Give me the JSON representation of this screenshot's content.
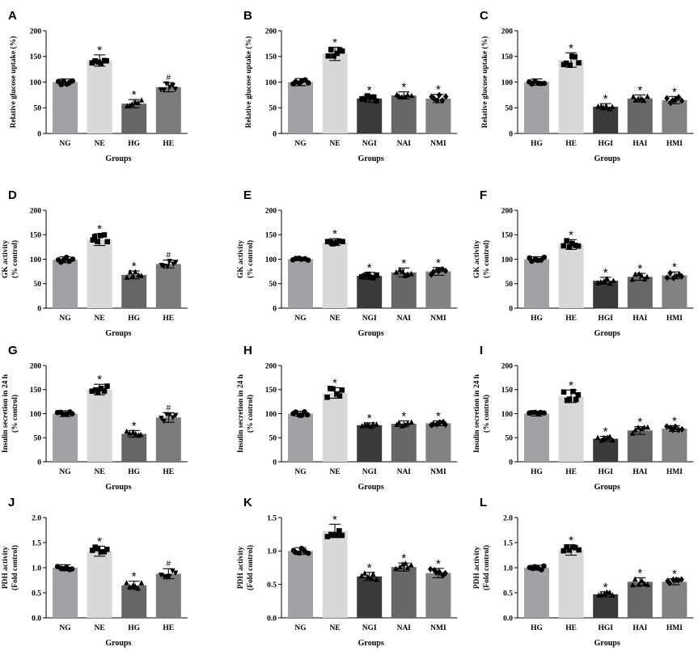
{
  "colors": {
    "NG": "#a1a1a6",
    "HG_ctrl": "#a1a1a6",
    "NE": "#d8d8d8",
    "HE_light": "#d8d8d8",
    "HG_dark": "#666666",
    "HE_dark": "#7b7b7b",
    "inhibitor1": "#3a3a3a",
    "inhibitor2": "#676767",
    "inhibitor3": "#828282"
  },
  "chart_data": [
    {
      "letter": "A",
      "type": "bar",
      "xlabel": "Groups",
      "ylabel": "Relative glucose uptake (%)",
      "ylim": [
        0,
        200
      ],
      "yticks": [
        "0",
        "50",
        "100",
        "150",
        "200"
      ],
      "categories": [
        "NG",
        "NE",
        "HG",
        "HE"
      ],
      "values": [
        100,
        142,
        58,
        90
      ],
      "errors": [
        6,
        11,
        8,
        9
      ],
      "colors": [
        "#a1a1a6",
        "#d8d8d8",
        "#666666",
        "#7b7b7b"
      ],
      "marks": [
        "",
        "*",
        "*",
        "#"
      ],
      "markers": [
        "circle",
        "square",
        "triangle",
        "triangle-down"
      ]
    },
    {
      "letter": "B",
      "type": "bar",
      "xlabel": "Groups",
      "ylabel": "Relative glucose uptake (%)",
      "ylim": [
        0,
        200
      ],
      "yticks": [
        "0",
        "50",
        "100",
        "150",
        "200"
      ],
      "categories": [
        "NG",
        "NE",
        "NGI",
        "NAI",
        "NMI"
      ],
      "values": [
        100,
        155,
        68,
        74,
        68
      ],
      "errors": [
        7,
        13,
        7,
        7,
        8
      ],
      "colors": [
        "#a1a1a6",
        "#d8d8d8",
        "#3a3a3a",
        "#676767",
        "#828282"
      ],
      "marks": [
        "",
        "*",
        "*",
        "*",
        "*"
      ],
      "markers": [
        "circle",
        "square",
        "square",
        "triangle",
        "diamond"
      ]
    },
    {
      "letter": "C",
      "type": "bar",
      "xlabel": "Groups",
      "ylabel": "Relative glucose uptake (%)",
      "ylim": [
        0,
        200
      ],
      "yticks": [
        "0",
        "50",
        "100",
        "150",
        "200"
      ],
      "categories": [
        "HG",
        "HE",
        "HGI",
        "HAI",
        "HMI"
      ],
      "values": [
        100,
        143,
        52,
        68,
        65
      ],
      "errors": [
        6,
        14,
        6,
        7,
        7
      ],
      "colors": [
        "#a1a1a6",
        "#d8d8d8",
        "#3a3a3a",
        "#676767",
        "#828282"
      ],
      "marks": [
        "",
        "*",
        "*",
        "*",
        "*"
      ],
      "markers": [
        "circle",
        "square",
        "triangle",
        "triangle",
        "diamond"
      ]
    },
    {
      "letter": "D",
      "type": "bar",
      "xlabel": "Groups",
      "ylabel": "GK activity|(% control)",
      "ylim": [
        0,
        200
      ],
      "yticks": [
        "0",
        "50",
        "100",
        "150",
        "200"
      ],
      "categories": [
        "NG",
        "NE",
        "HG",
        "HE"
      ],
      "values": [
        99,
        140,
        68,
        90
      ],
      "errors": [
        6,
        12,
        8,
        8
      ],
      "colors": [
        "#a1a1a6",
        "#d8d8d8",
        "#666666",
        "#7b7b7b"
      ],
      "marks": [
        "",
        "*",
        "*",
        "#"
      ],
      "markers": [
        "circle",
        "square",
        "triangle",
        "triangle-down"
      ]
    },
    {
      "letter": "E",
      "type": "bar",
      "xlabel": "Groups",
      "ylabel": "GK activity|(% control)",
      "ylim": [
        0,
        200
      ],
      "yticks": [
        "0",
        "50",
        "100",
        "150",
        "200"
      ],
      "categories": [
        "NG",
        "NE",
        "NGI",
        "NAI",
        "NMI"
      ],
      "values": [
        100,
        135,
        66,
        73,
        75
      ],
      "errors": [
        3,
        7,
        7,
        9,
        8
      ],
      "colors": [
        "#a1a1a6",
        "#d8d8d8",
        "#3a3a3a",
        "#676767",
        "#828282"
      ],
      "marks": [
        "",
        "*",
        "*",
        "*",
        "*"
      ],
      "markers": [
        "circle",
        "square",
        "square",
        "triangle",
        "diamond"
      ]
    },
    {
      "letter": "F",
      "type": "bar",
      "xlabel": "Groups",
      "ylabel": "GK activity|(% control)",
      "ylim": [
        0,
        200
      ],
      "yticks": [
        "0",
        "50",
        "100",
        "150",
        "200"
      ],
      "categories": [
        "HG",
        "HE",
        "HGI",
        "HAI",
        "HMI"
      ],
      "values": [
        100,
        130,
        56,
        64,
        67
      ],
      "errors": [
        5,
        10,
        7,
        7,
        7
      ],
      "colors": [
        "#a1a1a6",
        "#d8d8d8",
        "#3a3a3a",
        "#676767",
        "#828282"
      ],
      "marks": [
        "",
        "*",
        "*",
        "*",
        "*"
      ],
      "markers": [
        "circle",
        "square",
        "triangle",
        "triangle",
        "diamond"
      ]
    },
    {
      "letter": "G",
      "type": "bar",
      "xlabel": "Groups",
      "ylabel": "Insulin secretion in 24 h|(% control)",
      "ylim": [
        0,
        200
      ],
      "yticks": [
        "0",
        "50",
        "100",
        "150",
        "200"
      ],
      "categories": [
        "NG",
        "NE",
        "HG",
        "HE"
      ],
      "values": [
        100,
        150,
        58,
        92
      ],
      "errors": [
        6,
        11,
        7,
        10
      ],
      "colors": [
        "#a1a1a6",
        "#d8d8d8",
        "#666666",
        "#7b7b7b"
      ],
      "marks": [
        "",
        "*",
        "*",
        "#"
      ],
      "markers": [
        "circle",
        "square",
        "triangle",
        "triangle-down"
      ]
    },
    {
      "letter": "H",
      "type": "bar",
      "xlabel": "Groups",
      "ylabel": "Insulin secretion in 24 h|(% control)",
      "ylim": [
        0,
        200
      ],
      "yticks": [
        "0",
        "50",
        "100",
        "150",
        "200"
      ],
      "categories": [
        "NG",
        "NE",
        "NGI",
        "NAI",
        "NMI"
      ],
      "values": [
        100,
        143,
        76,
        79,
        80
      ],
      "errors": [
        5,
        11,
        5,
        6,
        5
      ],
      "colors": [
        "#a1a1a6",
        "#d8d8d8",
        "#3a3a3a",
        "#676767",
        "#828282"
      ],
      "marks": [
        "",
        "*",
        "*",
        "*",
        "*"
      ],
      "markers": [
        "circle",
        "square",
        "triangle",
        "triangle",
        "diamond"
      ]
    },
    {
      "letter": "I",
      "type": "bar",
      "xlabel": "Groups",
      "ylabel": "Insulin secretion in 24 h|(% control)",
      "ylim": [
        0,
        200
      ],
      "yticks": [
        "0",
        "50",
        "100",
        "150",
        "200"
      ],
      "categories": [
        "HG",
        "HE",
        "HGI",
        "HAI",
        "HMI"
      ],
      "values": [
        100,
        136,
        48,
        65,
        69
      ],
      "errors": [
        5,
        13,
        5,
        8,
        6
      ],
      "colors": [
        "#a1a1a6",
        "#d8d8d8",
        "#3a3a3a",
        "#676767",
        "#828282"
      ],
      "marks": [
        "",
        "*",
        "*",
        "*",
        "*"
      ],
      "markers": [
        "circle",
        "square",
        "triangle",
        "triangle",
        "diamond"
      ]
    },
    {
      "letter": "J",
      "type": "bar",
      "xlabel": "Groups",
      "ylabel": "PDH activity|(Fold control)",
      "ylim": [
        0,
        2.0
      ],
      "yticks": [
        "0.0",
        "0.5",
        "1.0",
        "1.5",
        "2.0"
      ],
      "categories": [
        "NG",
        "NE",
        "HG",
        "HE"
      ],
      "values": [
        1.0,
        1.33,
        0.65,
        0.88
      ],
      "errors": [
        0.06,
        0.1,
        0.08,
        0.1
      ],
      "colors": [
        "#a1a1a6",
        "#d8d8d8",
        "#666666",
        "#7b7b7b"
      ],
      "marks": [
        "",
        "*",
        "*",
        "#"
      ],
      "markers": [
        "circle",
        "square",
        "triangle",
        "triangle-down"
      ]
    },
    {
      "letter": "K",
      "type": "bar",
      "xlabel": "Groups",
      "ylabel": "PDH activity|(Fold control)",
      "ylim": [
        0,
        1.5
      ],
      "yticks": [
        "0.0",
        "0.5",
        "1.0",
        "1.5"
      ],
      "categories": [
        "NG",
        "NE",
        "NGI",
        "NAI",
        "NMI"
      ],
      "values": [
        1.0,
        1.3,
        0.62,
        0.76,
        0.67
      ],
      "errors": [
        0.05,
        0.1,
        0.06,
        0.06,
        0.07
      ],
      "colors": [
        "#a1a1a6",
        "#d8d8d8",
        "#3a3a3a",
        "#676767",
        "#828282"
      ],
      "marks": [
        "",
        "*",
        "*",
        "*",
        "*"
      ],
      "markers": [
        "circle",
        "square",
        "triangle",
        "triangle",
        "diamond"
      ]
    },
    {
      "letter": "L",
      "type": "bar",
      "xlabel": "Groups",
      "ylabel": "PDH activity|(Fold control)",
      "ylim": [
        0,
        2.0
      ],
      "yticks": [
        "0.0",
        "0.5",
        "1.0",
        "1.5",
        "2.0"
      ],
      "categories": [
        "HG",
        "HE",
        "HGI",
        "HAI",
        "HMI"
      ],
      "values": [
        1.0,
        1.35,
        0.47,
        0.72,
        0.72
      ],
      "errors": [
        0.05,
        0.1,
        0.05,
        0.08,
        0.06
      ],
      "colors": [
        "#a1a1a6",
        "#d8d8d8",
        "#3a3a3a",
        "#676767",
        "#828282"
      ],
      "marks": [
        "",
        "*",
        "*",
        "*",
        "*"
      ],
      "markers": [
        "circle",
        "square",
        "triangle",
        "triangle",
        "diamond"
      ]
    }
  ]
}
